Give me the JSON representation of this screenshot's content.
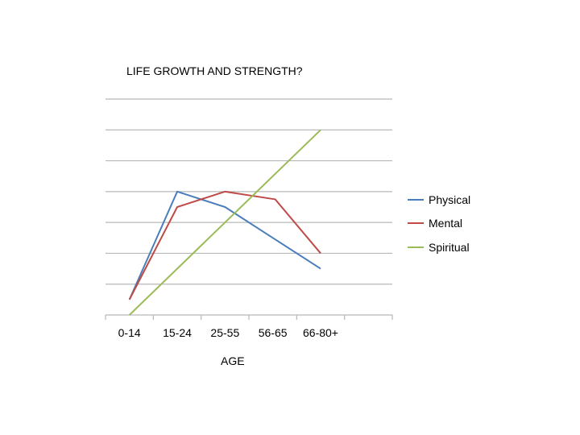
{
  "chart_data": {
    "type": "line",
    "title": "LIFE GROWTH AND STRENGTH?",
    "xlabel": "AGE",
    "ylabel": "",
    "categories": [
      "0-14",
      "15-24",
      "25-55",
      "56-65",
      "66-80+"
    ],
    "slots": 6,
    "ylim": [
      0,
      7
    ],
    "grid": true,
    "legend_position": "right",
    "series": [
      {
        "name": "Physical",
        "color": "#4A7EBB",
        "values": [
          0.5,
          4.0,
          3.5,
          2.5,
          1.5
        ],
        "x": [
          0,
          1,
          2,
          3,
          4
        ]
      },
      {
        "name": "Mental",
        "color": "#BE4B48",
        "values": [
          0.5,
          3.5,
          4.0,
          3.75,
          2.0
        ],
        "x": [
          0,
          1,
          2,
          3.05,
          4
        ]
      },
      {
        "name": "Spiritual",
        "color": "#9BBB59",
        "values": [
          0.0,
          6.0
        ],
        "x": [
          0,
          4
        ]
      }
    ]
  }
}
